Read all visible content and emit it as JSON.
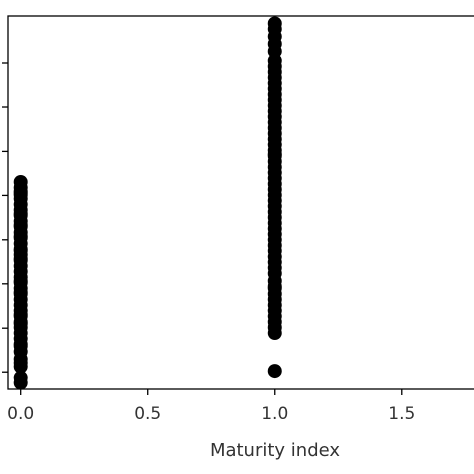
{
  "chart_data": {
    "type": "scatter",
    "title": "",
    "xlabel": "Maturity index",
    "ylabel": "",
    "xlim": [
      -0.05,
      1.8
    ],
    "xticks": [
      0.0,
      0.5,
      1.0,
      1.5
    ],
    "xtick_labels": [
      "0.0",
      "0.5",
      "1.0",
      "1.5"
    ],
    "ylim": [
      0,
      100
    ],
    "yticks": [
      4.5,
      16.3,
      28.2,
      40.0,
      51.9,
      63.7,
      75.6,
      87.4
    ],
    "ytick_labels": [],
    "grid": false,
    "legend": "none",
    "marker_color": "#000000",
    "series": [
      {
        "x": [
          0,
          0,
          0,
          0,
          0,
          0,
          0,
          0,
          0,
          0,
          0,
          0,
          0,
          0,
          0,
          0,
          0,
          0,
          0,
          0,
          0,
          0,
          0,
          0,
          0,
          0,
          0,
          0,
          0,
          0,
          0,
          0,
          0,
          0,
          0,
          0,
          0,
          0,
          0,
          0,
          0,
          0,
          0,
          0,
          0,
          0,
          0,
          0
        ],
        "y": [
          1.7,
          3.0,
          6.0,
          8.0,
          10.0,
          12.0,
          13.5,
          15.0,
          16.5,
          18.0,
          19.5,
          21.0,
          22.5,
          24.0,
          25.5,
          27.0,
          28.5,
          30.0,
          31.5,
          33.0,
          34.5,
          36.0,
          37.5,
          39.0,
          40.5,
          42.0,
          43.5,
          45.0,
          46.5,
          48.0,
          49.5,
          51.0,
          52.0,
          53.0,
          54.0,
          55.5,
          52.5,
          37.0,
          29.0,
          20.0,
          11.5,
          7.0,
          47.0,
          44.0,
          41.0,
          35.0,
          26.0,
          17.5
        ]
      },
      {
        "x": [
          1,
          1,
          1,
          1,
          1,
          1,
          1,
          1,
          1,
          1,
          1,
          1,
          1,
          1,
          1,
          1,
          1,
          1,
          1,
          1,
          1,
          1,
          1,
          1,
          1,
          1,
          1,
          1,
          1,
          1,
          1,
          1,
          1,
          1,
          1,
          1,
          1,
          1,
          1,
          1,
          1,
          1,
          1,
          1,
          1,
          1,
          1,
          1,
          1,
          1,
          1,
          1,
          1,
          1,
          1,
          1,
          1
        ],
        "y": [
          4.8,
          15.0,
          16.5,
          18.0,
          19.5,
          21.0,
          22.5,
          24.0,
          25.5,
          27.0,
          29.0,
          31.0,
          32.5,
          34.0,
          35.5,
          37.0,
          38.5,
          40.0,
          41.5,
          43.0,
          44.5,
          46.0,
          47.5,
          49.0,
          50.5,
          52.0,
          53.5,
          55.0,
          56.5,
          58.0,
          59.5,
          61.0,
          62.5,
          64.0,
          65.5,
          67.0,
          68.5,
          70.0,
          71.5,
          73.0,
          74.5,
          76.0,
          77.5,
          79.0,
          80.5,
          82.0,
          83.5,
          85.0,
          86.5,
          88.0,
          90.5,
          92.5,
          94.5,
          96.5,
          98.0,
          63.0,
          27.5
        ]
      }
    ]
  }
}
